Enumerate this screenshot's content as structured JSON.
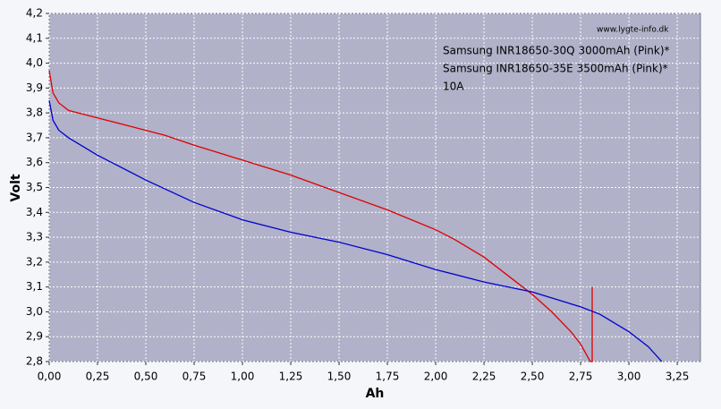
{
  "chart_data": {
    "type": "line",
    "watermark": "www.lygte-info.dk",
    "note": "10A",
    "xlabel": "Ah",
    "ylabel": "Volt",
    "xlim": [
      0,
      3.37
    ],
    "ylim": [
      2.8,
      4.2
    ],
    "xticks": [
      {
        "value": 0,
        "label": "0,00"
      },
      {
        "value": 0.25,
        "label": "0,25"
      },
      {
        "value": 0.5,
        "label": "0,50"
      },
      {
        "value": 0.75,
        "label": "0,75"
      },
      {
        "value": 1,
        "label": "1,00"
      },
      {
        "value": 1.25,
        "label": "1,25"
      },
      {
        "value": 1.5,
        "label": "1,50"
      },
      {
        "value": 1.75,
        "label": "1,75"
      },
      {
        "value": 2,
        "label": "2,00"
      },
      {
        "value": 2.25,
        "label": "2,25"
      },
      {
        "value": 2.5,
        "label": "2,50"
      },
      {
        "value": 2.75,
        "label": "2,75"
      },
      {
        "value": 3,
        "label": "3,00"
      },
      {
        "value": 3.25,
        "label": "3,25"
      }
    ],
    "yticks": [
      {
        "value": 2.8,
        "label": "2,8"
      },
      {
        "value": 2.9,
        "label": "2,9"
      },
      {
        "value": 3,
        "label": "3,0"
      },
      {
        "value": 3.1,
        "label": "3,1"
      },
      {
        "value": 3.2,
        "label": "3,2"
      },
      {
        "value": 3.3,
        "label": "3,3"
      },
      {
        "value": 3.4,
        "label": "3,4"
      },
      {
        "value": 3.5,
        "label": "3,5"
      },
      {
        "value": 3.6,
        "label": "3,6"
      },
      {
        "value": 3.7,
        "label": "3,7"
      },
      {
        "value": 3.8,
        "label": "3,8"
      },
      {
        "value": 3.9,
        "label": "3,9"
      },
      {
        "value": 4,
        "label": "4,0"
      },
      {
        "value": 4.1,
        "label": "4,1"
      },
      {
        "value": 4.2,
        "label": "4,2"
      }
    ],
    "grid": true,
    "series": [
      {
        "name": "Samsung INR18650-30Q 3000mAh (Pink)*",
        "color": "#e00000",
        "x": [
          0,
          0.02,
          0.05,
          0.1,
          0.25,
          0.5,
          0.6,
          0.75,
          1.0,
          1.25,
          1.5,
          1.75,
          2.0,
          2.1,
          2.25,
          2.4,
          2.5,
          2.6,
          2.7,
          2.75,
          2.8,
          2.81,
          2.81
        ],
        "values": [
          3.97,
          3.88,
          3.84,
          3.81,
          3.78,
          3.73,
          3.71,
          3.67,
          3.61,
          3.55,
          3.48,
          3.41,
          3.33,
          3.29,
          3.22,
          3.13,
          3.07,
          3.0,
          2.92,
          2.87,
          2.8,
          2.8,
          3.1
        ]
      },
      {
        "name": "Samsung INR18650-35E 3500mAh (Pink)*",
        "color": "#0000d0",
        "x": [
          0,
          0.02,
          0.05,
          0.1,
          0.25,
          0.5,
          0.75,
          1.0,
          1.25,
          1.5,
          1.75,
          2.0,
          2.25,
          2.5,
          2.75,
          2.85,
          3.0,
          3.1,
          3.17
        ],
        "values": [
          3.85,
          3.77,
          3.73,
          3.7,
          3.63,
          3.53,
          3.44,
          3.37,
          3.32,
          3.28,
          3.23,
          3.17,
          3.12,
          3.08,
          3.02,
          2.99,
          2.92,
          2.86,
          2.8
        ]
      }
    ]
  }
}
